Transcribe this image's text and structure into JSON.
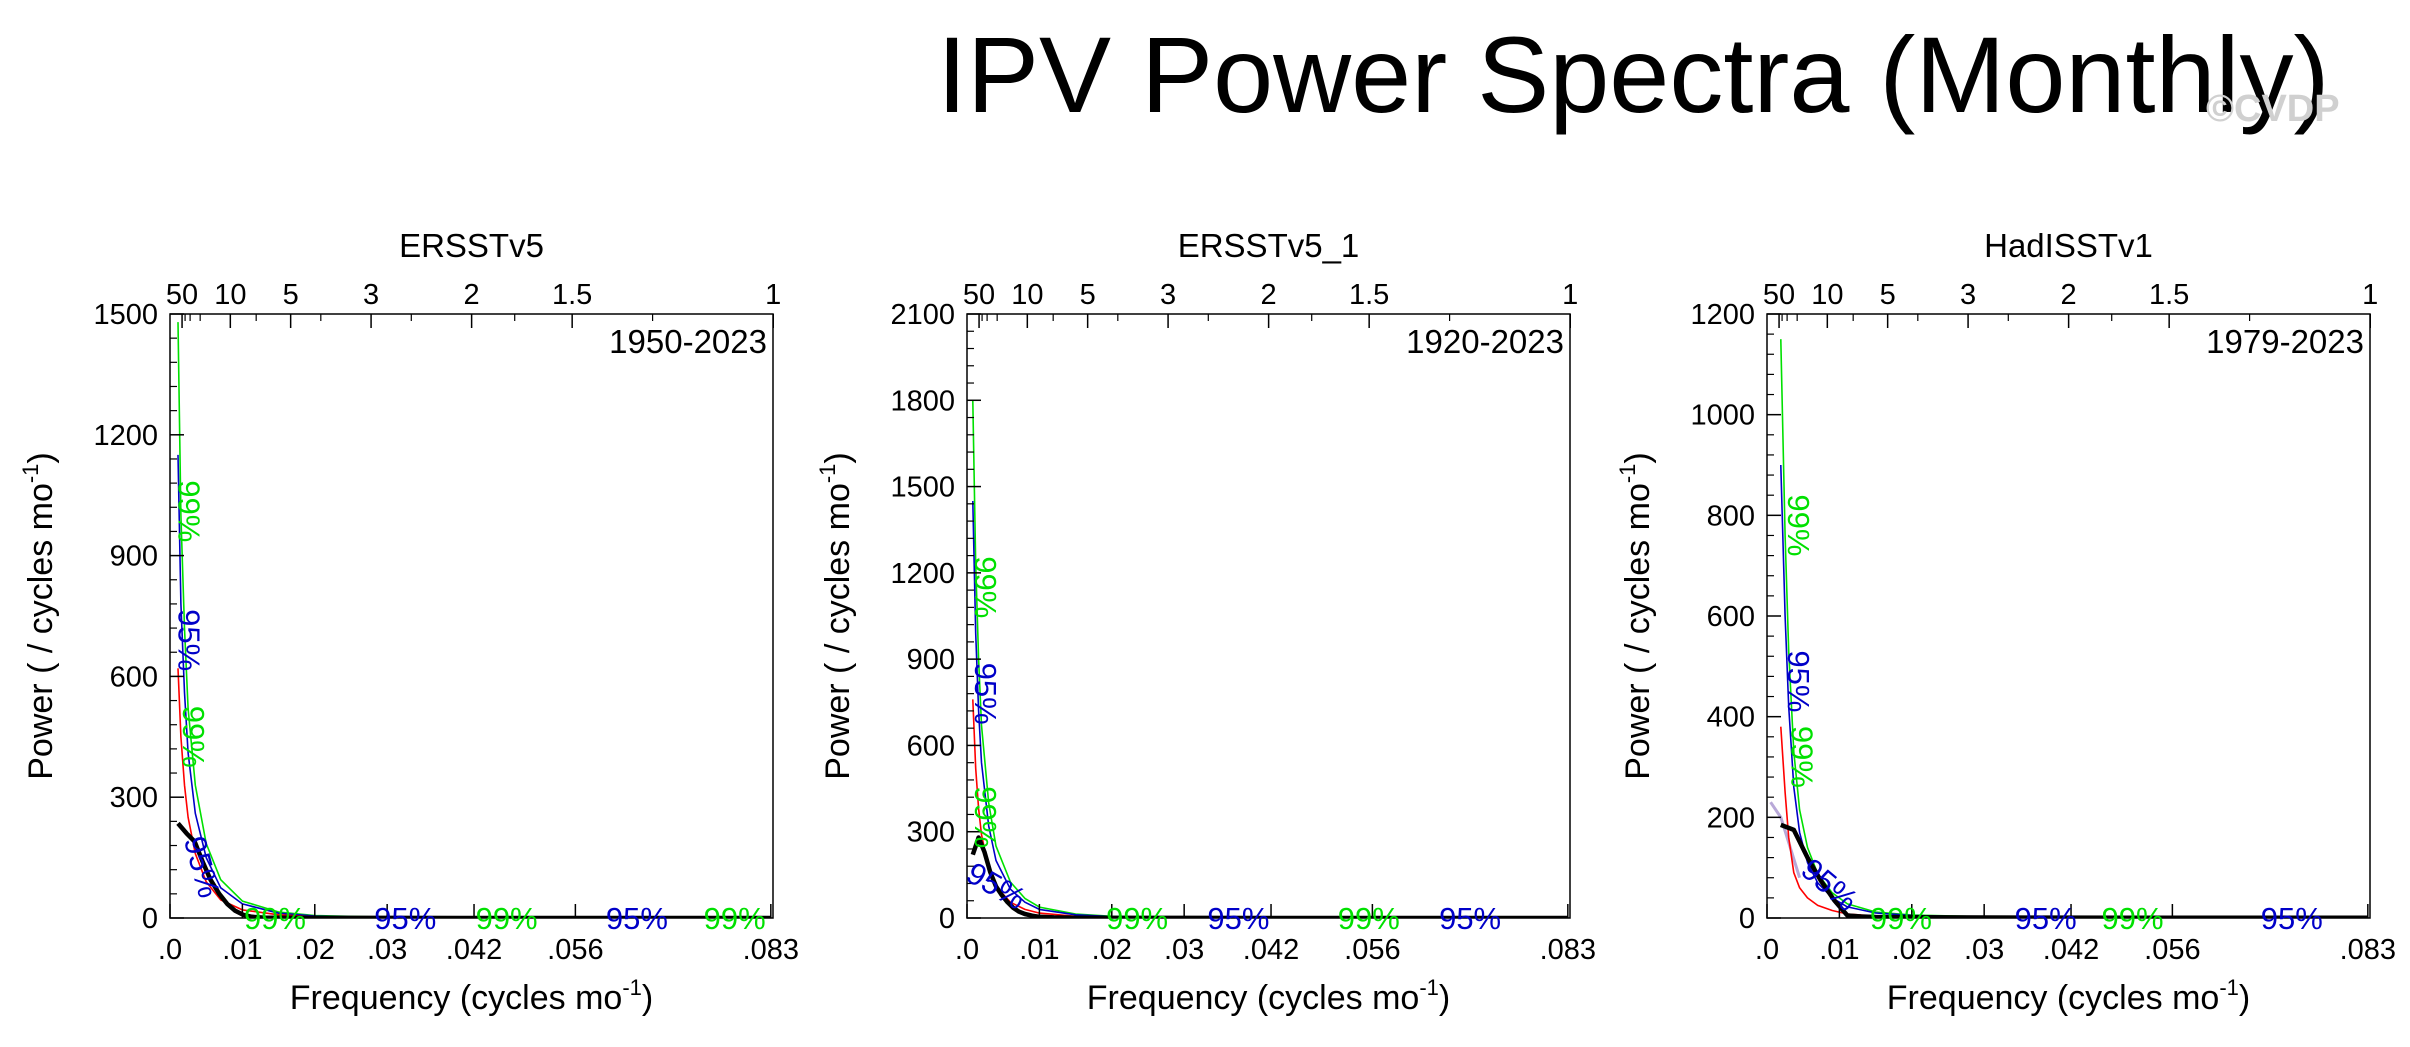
{
  "page": {
    "title": "IPV Power Spectra (Monthly)",
    "watermark": "©CVDP"
  },
  "colors": {
    "spectrum": "#000000",
    "red_noise": "#ff0000",
    "ci95": "#0000c8",
    "ci99": "#00e000",
    "thin_blue": "#3050ff"
  },
  "chart_data": [
    {
      "type": "line",
      "title": "ERSSTv5",
      "subtitle": "1950-2023",
      "xlabel": "Frequency (cycles mo",
      "xlabel_sup": "-1",
      "xlabel_end": ")",
      "ylabel": "Power ( / cycles mo",
      "ylabel_sup": "-1",
      "ylabel_end": ")",
      "xlim": [
        0,
        0.0833
      ],
      "ylim": [
        0,
        1500
      ],
      "x_ticks": [
        0,
        0.01,
        0.02,
        0.03,
        0.042,
        0.056,
        0.083
      ],
      "x_tick_labels": [
        ".0",
        ".01",
        ".02",
        ".03",
        ".042",
        ".056",
        ".083"
      ],
      "y_ticks": [
        0,
        300,
        600,
        900,
        1200,
        1500
      ],
      "y_tick_labels": [
        "0",
        "300",
        "600",
        "900",
        "1200",
        "1500"
      ],
      "top_ticks_period_years": [
        50,
        10,
        5,
        3,
        2,
        1.5,
        1
      ],
      "top_tick_labels": [
        "50",
        "10",
        "5",
        "3",
        "2",
        "1.5",
        "1"
      ],
      "series": [
        {
          "name": "",
          "role": "spectrum",
          "x": [
            0.0011,
            0.0023,
            0.0034,
            0.0045,
            0.0056,
            0.0068,
            0.0079,
            0.009,
            0.0101,
            0.0113,
            0.013,
            0.016,
            0.02,
            0.03,
            0.04,
            0.05,
            0.06,
            0.07,
            0.083
          ],
          "y": [
            235,
            210,
            190,
            140,
            95,
            60,
            35,
            18,
            8,
            3,
            1,
            0.5,
            0.3,
            0.2,
            0.1,
            0.1,
            0.1,
            0.1,
            0.1
          ]
        },
        {
          "name": "",
          "role": "red_noise",
          "x": [
            0.0011,
            0.0015,
            0.002,
            0.0025,
            0.0035,
            0.005,
            0.007,
            0.01,
            0.015,
            0.02,
            0.03,
            0.05,
            0.083
          ],
          "y": [
            620,
            450,
            330,
            250,
            160,
            90,
            45,
            20,
            8,
            3,
            1,
            0.3,
            0.1
          ]
        },
        {
          "name": "",
          "role": "ci95",
          "x": [
            0.0011,
            0.0015,
            0.002,
            0.0025,
            0.0035,
            0.005,
            0.007,
            0.01,
            0.015,
            0.02,
            0.03,
            0.05,
            0.083
          ],
          "y": [
            1150,
            780,
            560,
            410,
            260,
            150,
            75,
            35,
            12,
            5,
            1.5,
            0.5,
            0.2
          ]
        },
        {
          "name": "",
          "role": "ci99",
          "x": [
            0.0011,
            0.0015,
            0.002,
            0.0025,
            0.0035,
            0.005,
            0.007,
            0.01,
            0.015,
            0.02,
            0.03,
            0.05,
            0.083
          ],
          "y": [
            1480,
            1000,
            720,
            520,
            330,
            185,
            95,
            42,
            15,
            6,
            2,
            0.6,
            0.2
          ]
        }
      ],
      "annotations": [
        {
          "text": "99%",
          "x": 0.0012,
          "y": 1010,
          "color": "ci99",
          "rotate": 90
        },
        {
          "text": "95%",
          "x": 0.0012,
          "y": 690,
          "color": "ci95",
          "rotate": 90
        },
        {
          "text": "99%",
          "x": 0.0018,
          "y": 450,
          "color": "ci99",
          "rotate": 90
        },
        {
          "text": "95%",
          "x": 0.003,
          "y": 120,
          "color": "ci95",
          "rotate": 75
        },
        {
          "text": "99%",
          "x": 0.0145,
          "y": 0,
          "color": "ci99",
          "rotate": 0
        },
        {
          "text": "95%",
          "x": 0.0325,
          "y": 0,
          "color": "ci95",
          "rotate": 0
        },
        {
          "text": "99%",
          "x": 0.0465,
          "y": 0,
          "color": "ci99",
          "rotate": 0
        },
        {
          "text": "95%",
          "x": 0.0645,
          "y": 0,
          "color": "ci95",
          "rotate": 0
        },
        {
          "text": "99%",
          "x": 0.078,
          "y": 0,
          "color": "ci99",
          "rotate": 0
        }
      ]
    },
    {
      "type": "line",
      "title": "ERSSTv5_1",
      "subtitle": "1920-2023",
      "xlabel": "Frequency (cycles mo",
      "xlabel_sup": "-1",
      "xlabel_end": ")",
      "ylabel": "Power ( / cycles mo",
      "ylabel_sup": "-1",
      "ylabel_end": ")",
      "xlim": [
        0,
        0.0833
      ],
      "ylim": [
        0,
        2100
      ],
      "x_ticks": [
        0,
        0.01,
        0.02,
        0.03,
        0.042,
        0.056,
        0.083
      ],
      "x_tick_labels": [
        ".0",
        ".01",
        ".02",
        ".03",
        ".042",
        ".056",
        ".083"
      ],
      "y_ticks": [
        0,
        300,
        600,
        900,
        1200,
        1500,
        1800,
        2100
      ],
      "y_tick_labels": [
        "0",
        "300",
        "600",
        "900",
        "1200",
        "1500",
        "1800",
        "2100"
      ],
      "top_ticks_period_years": [
        50,
        10,
        5,
        3,
        2,
        1.5,
        1
      ],
      "top_tick_labels": [
        "50",
        "10",
        "5",
        "3",
        "2",
        "1.5",
        "1"
      ],
      "series": [
        {
          "name": "",
          "role": "spectrum",
          "x": [
            0.0008,
            0.0016,
            0.0024,
            0.0032,
            0.004,
            0.0048,
            0.0056,
            0.0064,
            0.0072,
            0.008,
            0.009,
            0.01,
            0.012,
            0.015,
            0.02,
            0.03,
            0.05,
            0.083
          ],
          "y": [
            220,
            280,
            230,
            160,
            110,
            80,
            55,
            35,
            22,
            14,
            8,
            4,
            2,
            1,
            0.5,
            0.2,
            0.1,
            0.1
          ]
        },
        {
          "name": "",
          "role": "red_noise",
          "x": [
            0.0008,
            0.0012,
            0.0016,
            0.002,
            0.003,
            0.004,
            0.006,
            0.008,
            0.01,
            0.015,
            0.02,
            0.03,
            0.05,
            0.083
          ],
          "y": [
            760,
            520,
            380,
            290,
            170,
            110,
            55,
            30,
            17,
            6,
            3,
            1,
            0.3,
            0.1
          ]
        },
        {
          "name": "",
          "role": "ci95",
          "x": [
            0.0008,
            0.0012,
            0.0016,
            0.002,
            0.003,
            0.004,
            0.006,
            0.008,
            0.01,
            0.015,
            0.02,
            0.03,
            0.05,
            0.083
          ],
          "y": [
            1450,
            990,
            720,
            540,
            320,
            200,
            100,
            55,
            30,
            11,
            5,
            2,
            0.5,
            0.2
          ]
        },
        {
          "name": "",
          "role": "ci99",
          "x": [
            0.0008,
            0.0012,
            0.0016,
            0.002,
            0.003,
            0.004,
            0.006,
            0.008,
            0.01,
            0.015,
            0.02,
            0.03,
            0.05,
            0.083
          ],
          "y": [
            1800,
            1230,
            900,
            670,
            400,
            250,
            125,
            68,
            38,
            14,
            6,
            2.5,
            0.6,
            0.2
          ]
        }
      ],
      "annotations": [
        {
          "text": "99%",
          "x": 0.0011,
          "y": 1150,
          "color": "ci99",
          "rotate": 90
        },
        {
          "text": "95%",
          "x": 0.0011,
          "y": 780,
          "color": "ci95",
          "rotate": 90
        },
        {
          "text": "99%",
          "x": 0.0011,
          "y": 350,
          "color": "ci99",
          "rotate": 90
        },
        {
          "text": "95%",
          "x": 0.0033,
          "y": 80,
          "color": "ci95",
          "rotate": 30
        },
        {
          "text": "99%",
          "x": 0.0235,
          "y": 0,
          "color": "ci99",
          "rotate": 0
        },
        {
          "text": "95%",
          "x": 0.0375,
          "y": 0,
          "color": "ci95",
          "rotate": 0
        },
        {
          "text": "99%",
          "x": 0.0555,
          "y": 0,
          "color": "ci99",
          "rotate": 0
        },
        {
          "text": "95%",
          "x": 0.0695,
          "y": 0,
          "color": "ci95",
          "rotate": 0
        }
      ]
    },
    {
      "type": "line",
      "title": "HadISSTv1",
      "subtitle": "1979-2023",
      "xlabel": "Frequency (cycles mo",
      "xlabel_sup": "-1",
      "xlabel_end": ")",
      "ylabel": "Power ( / cycles mo",
      "ylabel_sup": "-1",
      "ylabel_end": ")",
      "xlim": [
        0,
        0.0833
      ],
      "ylim": [
        0,
        1200
      ],
      "x_ticks": [
        0,
        0.01,
        0.02,
        0.03,
        0.042,
        0.056,
        0.083
      ],
      "x_tick_labels": [
        ".0",
        ".01",
        ".02",
        ".03",
        ".042",
        ".056",
        ".083"
      ],
      "y_ticks": [
        0,
        200,
        400,
        600,
        800,
        1000,
        1200
      ],
      "y_tick_labels": [
        "0",
        "200",
        "400",
        "600",
        "800",
        "1000",
        "1200"
      ],
      "top_ticks_period_years": [
        50,
        10,
        5,
        3,
        2,
        1.5,
        1
      ],
      "top_tick_labels": [
        "50",
        "10",
        "5",
        "3",
        "2",
        "1.5",
        "1"
      ],
      "series": [
        {
          "name": "",
          "role": "spectrum",
          "x": [
            0.0019,
            0.0037,
            0.0056,
            0.0074,
            0.0093,
            0.0111,
            0.013,
            0.015,
            0.02,
            0.03,
            0.04,
            0.05,
            0.06,
            0.07,
            0.083
          ],
          "y": [
            185,
            175,
            120,
            75,
            35,
            5,
            3,
            2,
            1.5,
            1,
            0.8,
            0.6,
            0.5,
            0.4,
            0.3
          ]
        },
        {
          "name": "",
          "role": "red_noise",
          "x": [
            0.0019,
            0.0025,
            0.003,
            0.0037,
            0.0045,
            0.0056,
            0.007,
            0.009,
            0.0111,
            0.015,
            0.02,
            0.03,
            0.05,
            0.083
          ],
          "y": [
            380,
            250,
            160,
            90,
            60,
            40,
            25,
            15,
            8,
            4,
            2,
            1,
            0.4,
            0.2
          ]
        },
        {
          "name": "",
          "role": "ci95",
          "x": [
            0.0019,
            0.0025,
            0.003,
            0.0037,
            0.0045,
            0.0056,
            0.007,
            0.009,
            0.0111,
            0.015,
            0.02,
            0.03,
            0.05,
            0.083
          ],
          "y": [
            900,
            600,
            420,
            260,
            170,
            110,
            70,
            40,
            22,
            10,
            5,
            2,
            0.8,
            0.3
          ]
        },
        {
          "name": "",
          "role": "ci99",
          "x": [
            0.0019,
            0.0025,
            0.003,
            0.0037,
            0.0045,
            0.0056,
            0.007,
            0.009,
            0.0111,
            0.015,
            0.02,
            0.03,
            0.05,
            0.083
          ],
          "y": [
            1150,
            760,
            530,
            330,
            215,
            140,
            88,
            50,
            28,
            12,
            6,
            2.5,
            1,
            0.4
          ]
        },
        {
          "name": "",
          "role": "thin_blue",
          "x": [
            0.0005,
            0.0019,
            0.003,
            0.0045
          ],
          "y": [
            230,
            200,
            150,
            80
          ]
        }
      ],
      "annotations": [
        {
          "text": "99%",
          "x": 0.0029,
          "y": 780,
          "color": "ci99",
          "rotate": 90
        },
        {
          "text": "95%",
          "x": 0.0029,
          "y": 470,
          "color": "ci95",
          "rotate": 90
        },
        {
          "text": "99%",
          "x": 0.0034,
          "y": 320,
          "color": "ci99",
          "rotate": 90
        },
        {
          "text": "95%",
          "x": 0.0077,
          "y": 50,
          "color": "ci95",
          "rotate": 40
        },
        {
          "text": "99%",
          "x": 0.0185,
          "y": 0,
          "color": "ci99",
          "rotate": 0
        },
        {
          "text": "95%",
          "x": 0.0385,
          "y": 0,
          "color": "ci95",
          "rotate": 0
        },
        {
          "text": "99%",
          "x": 0.0505,
          "y": 0,
          "color": "ci99",
          "rotate": 0
        },
        {
          "text": "95%",
          "x": 0.0725,
          "y": 0,
          "color": "ci95",
          "rotate": 0
        }
      ]
    }
  ]
}
